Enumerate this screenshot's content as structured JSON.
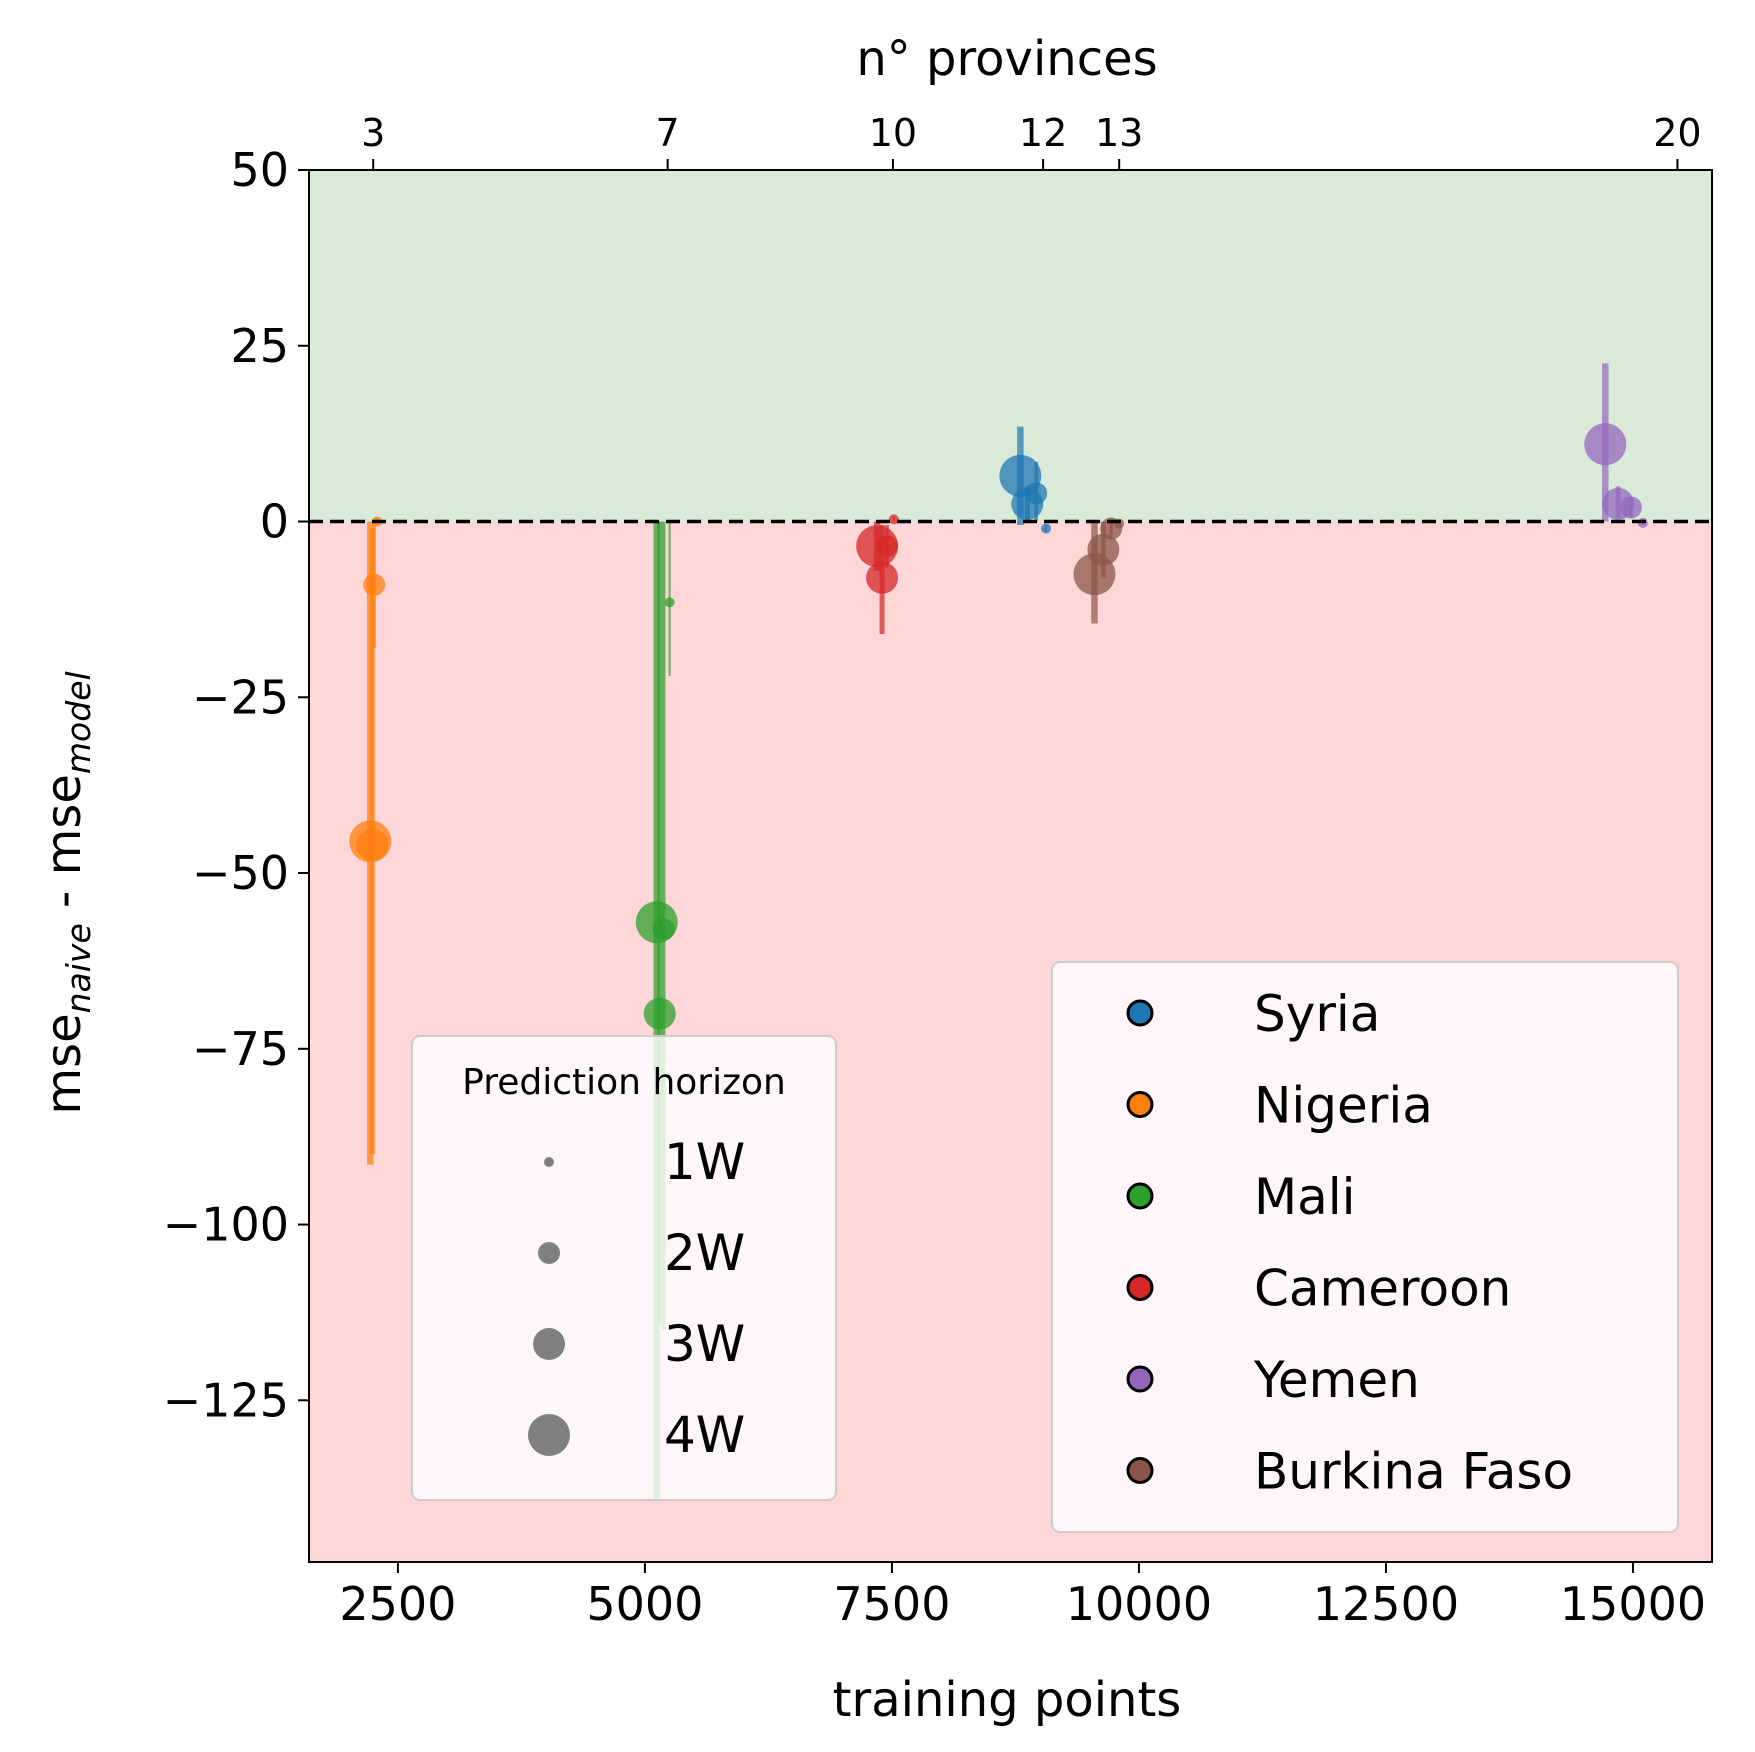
{
  "chart_data": {
    "type": "scatter",
    "xlabel": "training points",
    "ylabel_main": "mse",
    "ylabel_sub1": "naive",
    "ylabel_mid": " - mse",
    "ylabel_sub2": "model",
    "top_axis_label": "n° provinces",
    "xlim": [
      1600,
      15800
    ],
    "ylim": [
      -148,
      50
    ],
    "x_ticks": [
      2500,
      5000,
      7500,
      10000,
      12500,
      15000
    ],
    "x_tick_labels": [
      "2500",
      "5000",
      "7500",
      "10000",
      "12500",
      "15000"
    ],
    "y_ticks": [
      50,
      25,
      0,
      -25,
      -50,
      -75,
      -100,
      -125
    ],
    "y_tick_labels": [
      "50",
      "25",
      "0",
      "−25",
      "−50",
      "−75",
      "−100",
      "−125"
    ],
    "top_ticks": [
      {
        "x": 2250,
        "label": "3"
      },
      {
        "x": 5230,
        "label": "7"
      },
      {
        "x": 7510,
        "label": "10"
      },
      {
        "x": 9030,
        "label": "12"
      },
      {
        "x": 9800,
        "label": "13"
      },
      {
        "x": 15450,
        "label": "20"
      }
    ],
    "region_above_color": "#d9ebd8",
    "region_below_color": "#fdd6d7",
    "zero_line": {
      "y": 0,
      "style": "dashed",
      "color": "#000000"
    },
    "horizon_sizes": {
      "1W": 5,
      "2W": 11,
      "3W": 16,
      "4W": 21
    },
    "series": [
      {
        "name": "Syria",
        "color": "#1f77b4",
        "points": [
          {
            "h": "4W",
            "x": 8800,
            "y": 6.5,
            "lo": -0.5,
            "hi": 13.5
          },
          {
            "h": "3W",
            "x": 8870,
            "y": 2.5,
            "lo": 0.0,
            "hi": 5.0
          },
          {
            "h": "2W",
            "x": 8960,
            "y": 4.0,
            "lo": 0.0,
            "hi": 8.5
          },
          {
            "h": "1W",
            "x": 9060,
            "y": -1.0,
            "lo": -1.5,
            "hi": -0.5
          }
        ]
      },
      {
        "name": "Nigeria",
        "color": "#ff7f0e",
        "points": [
          {
            "h": "4W",
            "x": 2220,
            "y": -45.5,
            "lo": -91.5,
            "hi": 0.0
          },
          {
            "h": "3W",
            "x": 2240,
            "y": -46.0,
            "lo": -90.0,
            "hi": -1.0
          },
          {
            "h": "2W",
            "x": 2260,
            "y": -9.0,
            "lo": -18.0,
            "hi": -0.5
          },
          {
            "h": "1W",
            "x": 2290,
            "y": 0.0,
            "lo": -0.5,
            "hi": 0.5
          }
        ]
      },
      {
        "name": "Mali",
        "color": "#2ca02c",
        "points": [
          {
            "h": "4W",
            "x": 5120,
            "y": -57.0,
            "lo": -139.0,
            "hi": 0.0
          },
          {
            "h": "3W",
            "x": 5150,
            "y": -70.0,
            "lo": -114.0,
            "hi": 0.0
          },
          {
            "h": "2W",
            "x": 5190,
            "y": -58.0,
            "lo": -115.0,
            "hi": 0.0
          },
          {
            "h": "1W",
            "x": 5250,
            "y": -11.5,
            "lo": -22.0,
            "hi": 0.0
          }
        ]
      },
      {
        "name": "Cameroon",
        "color": "#d62728",
        "points": [
          {
            "h": "4W",
            "x": 7350,
            "y": -3.5,
            "lo": -7.0,
            "hi": 0.0
          },
          {
            "h": "3W",
            "x": 7400,
            "y": -8.0,
            "lo": -16.0,
            "hi": -0.5
          },
          {
            "h": "2W",
            "x": 7450,
            "y": -3.5,
            "lo": -6.5,
            "hi": -0.5
          },
          {
            "h": "1W",
            "x": 7520,
            "y": 0.3,
            "lo": 0.0,
            "hi": 0.7
          }
        ]
      },
      {
        "name": "Yemen",
        "color": "#9467bd",
        "points": [
          {
            "h": "4W",
            "x": 14720,
            "y": 11.0,
            "lo": 0.0,
            "hi": 22.5
          },
          {
            "h": "3W",
            "x": 14850,
            "y": 2.5,
            "lo": 0.5,
            "hi": 5.0
          },
          {
            "h": "2W",
            "x": 14980,
            "y": 2.0,
            "lo": 0.5,
            "hi": 3.5
          },
          {
            "h": "1W",
            "x": 15100,
            "y": -0.2,
            "lo": -0.5,
            "hi": 0.0
          }
        ]
      },
      {
        "name": "Burkina Faso",
        "color": "#8c564b",
        "points": [
          {
            "h": "4W",
            "x": 9550,
            "y": -7.5,
            "lo": -14.5,
            "hi": 0.0
          },
          {
            "h": "3W",
            "x": 9640,
            "y": -4.0,
            "lo": -8.0,
            "hi": 0.0
          },
          {
            "h": "2W",
            "x": 9720,
            "y": -1.0,
            "lo": -2.0,
            "hi": 0.0
          },
          {
            "h": "1W",
            "x": 9800,
            "y": -0.3,
            "lo": -0.6,
            "hi": 0.0
          }
        ]
      }
    ],
    "legend_countries": [
      "Syria",
      "Nigeria",
      "Mali",
      "Cameroon",
      "Yemen",
      "Burkina Faso"
    ],
    "legend_horizon": {
      "title": "Prediction horizon",
      "entries": [
        "1W",
        "2W",
        "3W",
        "4W"
      ],
      "marker_color": "#808080"
    }
  }
}
